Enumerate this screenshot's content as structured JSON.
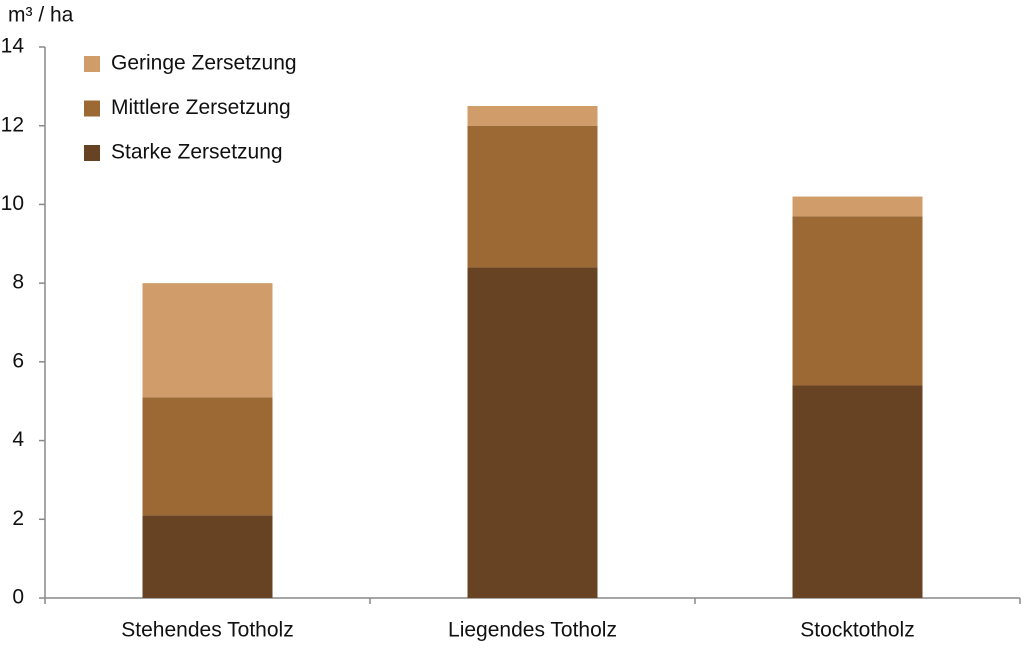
{
  "chart_data": {
    "type": "stacked_bar",
    "y_axis_label": "m³ / ha",
    "categories": [
      "Stehendes Totholz",
      "Liegendes Totholz",
      "Stocktotholz"
    ],
    "series": [
      {
        "name": "Starke Zersetzung",
        "color": "#674323",
        "values": [
          2.1,
          8.4,
          5.4
        ]
      },
      {
        "name": "Mittlere Zersetzung",
        "color": "#9c6935",
        "values": [
          3.0,
          3.6,
          4.3
        ]
      },
      {
        "name": "Geringe Zersetzung",
        "color": "#cf9c6a",
        "values": [
          2.9,
          0.5,
          0.5
        ]
      }
    ],
    "ylim": [
      0,
      14
    ],
    "yticks": [
      0,
      2,
      4,
      6,
      8,
      10,
      12,
      14
    ],
    "grid": false,
    "legend": "top-left"
  }
}
